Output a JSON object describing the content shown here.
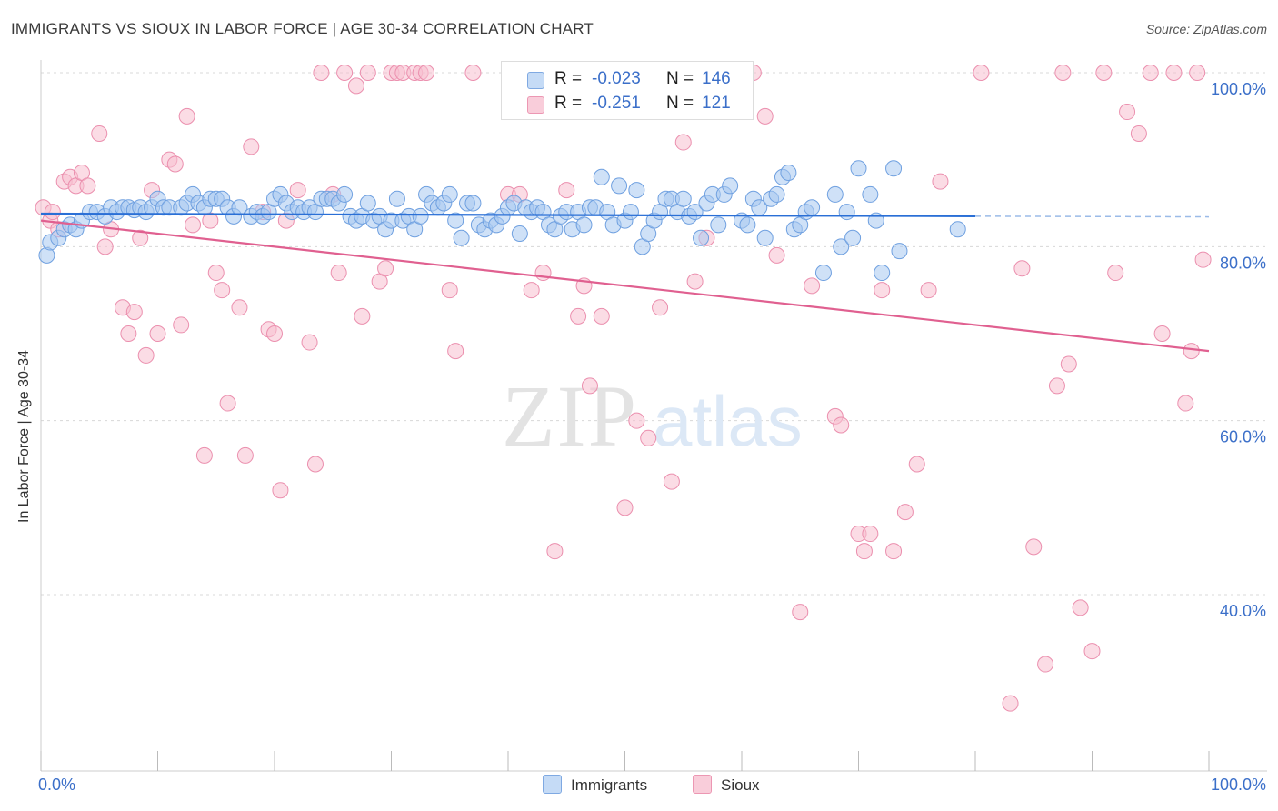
{
  "header": {
    "title": "IMMIGRANTS VS SIOUX IN LABOR FORCE | AGE 30-34 CORRELATION CHART",
    "source": "Source: ZipAtlas.com"
  },
  "watermark": {
    "zip": "ZIP",
    "atlas": "atlas"
  },
  "stats": [
    {
      "r_label": "R =",
      "r_value": "-0.023",
      "n_label": "N =",
      "n_value": "146",
      "color": "#a8c8f0"
    },
    {
      "r_label": "R =",
      "r_value": "-0.251",
      "n_label": "N =",
      "n_value": "121",
      "color": "#f5b5c8"
    }
  ],
  "legend": [
    {
      "label": "Immigrants",
      "color": "#a8c8f0"
    },
    {
      "label": "Sioux",
      "color": "#f5b5c8"
    }
  ],
  "chart_data": {
    "type": "scatter",
    "title": "IMMIGRANTS VS SIOUX IN LABOR FORCE | AGE 30-34 CORRELATION CHART",
    "xlabel": "",
    "ylabel": "In Labor Force | Age 30-34",
    "xlim": [
      0,
      100
    ],
    "ylim": [
      20,
      102
    ],
    "x_tick_labels": [
      "0.0%",
      "100.0%"
    ],
    "y_tick_labels": [
      "40.0%",
      "60.0%",
      "80.0%",
      "100.0%"
    ],
    "y_ticks": [
      40,
      60,
      80,
      100
    ],
    "grid": true,
    "colors": {
      "immigrants": "#6fa0e0",
      "immigrants_fill": "#a8c8f0",
      "immigrants_line": "#2a6fd6",
      "sioux": "#eb8fae",
      "sioux_fill": "#f7bfd0",
      "sioux_line": "#e06090",
      "axis_label": "#3b6fc9"
    },
    "series": [
      {
        "name": "Immigrants",
        "trend": {
          "x": [
            0,
            80
          ],
          "y": [
            83.8,
            83.5
          ],
          "dashed_to": 100
        },
        "points": [
          [
            0.5,
            79
          ],
          [
            0.8,
            80.5
          ],
          [
            1.5,
            81
          ],
          [
            2,
            82
          ],
          [
            2.5,
            82.5
          ],
          [
            3,
            82
          ],
          [
            3.5,
            83
          ],
          [
            4.2,
            84
          ],
          [
            4.8,
            84
          ],
          [
            5.5,
            83.5
          ],
          [
            6,
            84.5
          ],
          [
            6.5,
            84
          ],
          [
            7,
            84.5
          ],
          [
            7.5,
            84.5
          ],
          [
            8,
            84.2
          ],
          [
            8.5,
            84.5
          ],
          [
            9,
            84
          ],
          [
            9.5,
            84.5
          ],
          [
            10,
            85.5
          ],
          [
            10.5,
            84.5
          ],
          [
            11,
            84.5
          ],
          [
            12,
            84.5
          ],
          [
            12.5,
            85
          ],
          [
            13,
            86
          ],
          [
            13.5,
            85
          ],
          [
            14,
            84.5
          ],
          [
            14.5,
            85.5
          ],
          [
            15,
            85.5
          ],
          [
            15.5,
            85.5
          ],
          [
            16,
            84.5
          ],
          [
            16.5,
            83.5
          ],
          [
            17,
            84.5
          ],
          [
            18,
            83.5
          ],
          [
            18.5,
            84
          ],
          [
            19,
            83.5
          ],
          [
            19.5,
            84
          ],
          [
            20,
            85.5
          ],
          [
            20.5,
            86
          ],
          [
            21,
            85
          ],
          [
            21.5,
            84
          ],
          [
            22,
            84.5
          ],
          [
            22.5,
            84
          ],
          [
            23,
            84.5
          ],
          [
            23.5,
            84
          ],
          [
            24,
            85.5
          ],
          [
            24.5,
            85.5
          ],
          [
            25,
            85.5
          ],
          [
            25.5,
            85
          ],
          [
            26,
            86
          ],
          [
            26.5,
            83.5
          ],
          [
            27,
            83
          ],
          [
            27.5,
            83.5
          ],
          [
            28,
            85
          ],
          [
            28.5,
            83
          ],
          [
            29,
            83.5
          ],
          [
            29.5,
            82
          ],
          [
            30,
            83
          ],
          [
            30.5,
            85.5
          ],
          [
            31,
            83
          ],
          [
            31.5,
            83.5
          ],
          [
            32,
            82
          ],
          [
            32.5,
            83.5
          ],
          [
            33,
            86
          ],
          [
            33.5,
            85
          ],
          [
            34,
            84.5
          ],
          [
            34.5,
            85
          ],
          [
            35,
            86
          ],
          [
            35.5,
            83
          ],
          [
            36,
            81
          ],
          [
            36.5,
            85
          ],
          [
            37,
            85
          ],
          [
            37.5,
            82.5
          ],
          [
            38,
            82
          ],
          [
            38.5,
            83
          ],
          [
            39,
            82.5
          ],
          [
            39.5,
            83.5
          ],
          [
            40,
            84.5
          ],
          [
            40.5,
            85
          ],
          [
            41,
            81.5
          ],
          [
            41.5,
            84.5
          ],
          [
            42,
            84
          ],
          [
            42.5,
            84.5
          ],
          [
            43,
            84
          ],
          [
            43.5,
            82.5
          ],
          [
            44,
            82
          ],
          [
            44.5,
            83.5
          ],
          [
            45,
            84
          ],
          [
            45.5,
            82
          ],
          [
            46,
            84
          ],
          [
            46.5,
            82.5
          ],
          [
            47,
            84.5
          ],
          [
            47.5,
            84.5
          ],
          [
            48,
            88
          ],
          [
            48.5,
            84
          ],
          [
            49,
            82.5
          ],
          [
            49.5,
            87
          ],
          [
            50,
            83
          ],
          [
            50.5,
            84
          ],
          [
            51,
            86.5
          ],
          [
            51.5,
            80
          ],
          [
            52,
            81.5
          ],
          [
            52.5,
            83
          ],
          [
            53,
            84
          ],
          [
            53.5,
            85.5
          ],
          [
            54,
            85.5
          ],
          [
            54.5,
            84
          ],
          [
            55,
            85.5
          ],
          [
            55.5,
            83.5
          ],
          [
            56,
            84
          ],
          [
            56.5,
            81
          ],
          [
            57,
            85
          ],
          [
            57.5,
            86
          ],
          [
            58,
            82.5
          ],
          [
            58.5,
            86
          ],
          [
            59,
            87
          ],
          [
            60,
            83
          ],
          [
            60.5,
            82.5
          ],
          [
            61,
            85.5
          ],
          [
            61.5,
            84.5
          ],
          [
            62,
            81
          ],
          [
            62.5,
            85.5
          ],
          [
            63,
            86
          ],
          [
            63.5,
            88
          ],
          [
            64,
            88.5
          ],
          [
            64.5,
            82
          ],
          [
            65,
            82.5
          ],
          [
            65.5,
            84
          ],
          [
            66,
            84.5
          ],
          [
            67,
            77
          ],
          [
            68,
            86
          ],
          [
            68.5,
            80
          ],
          [
            69,
            84
          ],
          [
            69.5,
            81
          ],
          [
            70,
            89
          ],
          [
            71,
            86
          ],
          [
            71.5,
            83
          ],
          [
            72,
            77
          ],
          [
            73,
            89
          ],
          [
            73.5,
            79.5
          ],
          [
            78.5,
            82
          ]
        ]
      },
      {
        "name": "Sioux",
        "trend": {
          "x": [
            0,
            100
          ],
          "y": [
            83,
            68
          ]
        },
        "points": [
          [
            0.2,
            84.5
          ],
          [
            0.8,
            83
          ],
          [
            1,
            84
          ],
          [
            1.5,
            82
          ],
          [
            2,
            87.5
          ],
          [
            2.5,
            88
          ],
          [
            3,
            87
          ],
          [
            3.5,
            88.5
          ],
          [
            4,
            87
          ],
          [
            5,
            93
          ],
          [
            5.5,
            80
          ],
          [
            6,
            82
          ],
          [
            7,
            73
          ],
          [
            7.5,
            70
          ],
          [
            8,
            72.5
          ],
          [
            8.5,
            81
          ],
          [
            9,
            67.5
          ],
          [
            9.5,
            86.5
          ],
          [
            10,
            70
          ],
          [
            11,
            90
          ],
          [
            11.5,
            89.5
          ],
          [
            12,
            71
          ],
          [
            12.5,
            95
          ],
          [
            13,
            82.5
          ],
          [
            14,
            56
          ],
          [
            14.5,
            83
          ],
          [
            15,
            77
          ],
          [
            15.5,
            75
          ],
          [
            16,
            62
          ],
          [
            17,
            73
          ],
          [
            17.5,
            56
          ],
          [
            18,
            91.5
          ],
          [
            19,
            84
          ],
          [
            19.5,
            70.5
          ],
          [
            20,
            70
          ],
          [
            20.5,
            52
          ],
          [
            21,
            83
          ],
          [
            22,
            86.5
          ],
          [
            23,
            69
          ],
          [
            23.5,
            55
          ],
          [
            24,
            100
          ],
          [
            25,
            86
          ],
          [
            25.5,
            77
          ],
          [
            26,
            100
          ],
          [
            27,
            98.5
          ],
          [
            27.5,
            72
          ],
          [
            28,
            100
          ],
          [
            29,
            76
          ],
          [
            29.5,
            77.5
          ],
          [
            30,
            100
          ],
          [
            30.5,
            100
          ],
          [
            31,
            100
          ],
          [
            32,
            100
          ],
          [
            32.5,
            100
          ],
          [
            33,
            100
          ],
          [
            35,
            75
          ],
          [
            35.5,
            68
          ],
          [
            37,
            100
          ],
          [
            40,
            86
          ],
          [
            41,
            86
          ],
          [
            42,
            75
          ],
          [
            43,
            77
          ],
          [
            44,
            45
          ],
          [
            45,
            86.5
          ],
          [
            46,
            72
          ],
          [
            46.5,
            75.5
          ],
          [
            47,
            64
          ],
          [
            48,
            72
          ],
          [
            49,
            100
          ],
          [
            50,
            50
          ],
          [
            51,
            60
          ],
          [
            52,
            58
          ],
          [
            53,
            73
          ],
          [
            54,
            53
          ],
          [
            55,
            92
          ],
          [
            56,
            76
          ],
          [
            57,
            81
          ],
          [
            61,
            100
          ],
          [
            62,
            95
          ],
          [
            63,
            79
          ],
          [
            65,
            38
          ],
          [
            66,
            75.5
          ],
          [
            68,
            60.5
          ],
          [
            68.5,
            59.5
          ],
          [
            70,
            47
          ],
          [
            70.5,
            45
          ],
          [
            71,
            47
          ],
          [
            72,
            75
          ],
          [
            73,
            45
          ],
          [
            74,
            49.5
          ],
          [
            75,
            55
          ],
          [
            76,
            75
          ],
          [
            77,
            87.5
          ],
          [
            80.5,
            100
          ],
          [
            83,
            27.5
          ],
          [
            84,
            77.5
          ],
          [
            85,
            45.5
          ],
          [
            86,
            32
          ],
          [
            87,
            64
          ],
          [
            87.5,
            100
          ],
          [
            88,
            66.5
          ],
          [
            89,
            38.5
          ],
          [
            90,
            33.5
          ],
          [
            91,
            100
          ],
          [
            92,
            77
          ],
          [
            93,
            95.5
          ],
          [
            94,
            93
          ],
          [
            95,
            100
          ],
          [
            96,
            70
          ],
          [
            97,
            100
          ],
          [
            98,
            62
          ],
          [
            98.5,
            68
          ],
          [
            99,
            100
          ],
          [
            99.5,
            78.5
          ]
        ]
      }
    ]
  }
}
